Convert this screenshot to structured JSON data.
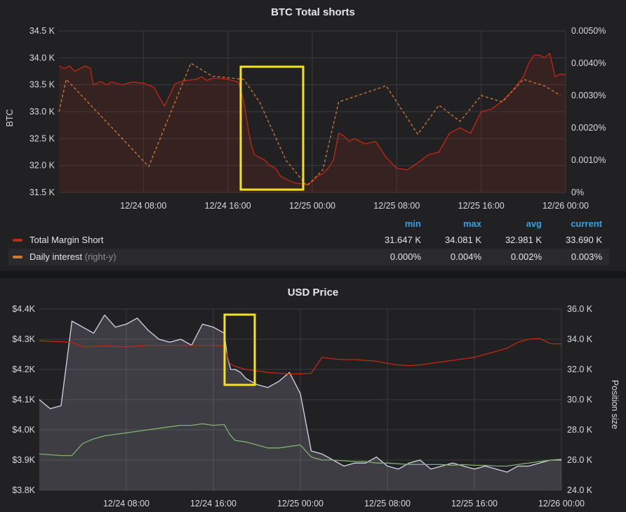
{
  "chart_data": [
    {
      "type": "line",
      "title": "BTC Total shorts",
      "ylabel": "BTC",
      "ylim": [
        31500,
        34500
      ],
      "y2lim": [
        0,
        0.005
      ],
      "x_ticks": [
        "12/24 08:00",
        "12/24 16:00",
        "12/25 00:00",
        "12/25 08:00",
        "12/25 16:00",
        "12/26 00:00"
      ],
      "y_ticks": [
        "31.5 K",
        "32.0 K",
        "32.5 K",
        "33.0 K",
        "33.5 K",
        "34.0 K",
        "34.5 K"
      ],
      "y2_ticks": [
        "0%",
        "0.0010%",
        "0.0020%",
        "0.0030%",
        "0.0040%",
        "0.0050%"
      ],
      "x_range_hours": [
        0,
        48
      ],
      "grid": true,
      "legend_position": "bottom",
      "legend_headers": [
        "min",
        "max",
        "avg",
        "current"
      ],
      "series": [
        {
          "name": "Total Margin Short",
          "axis": "left",
          "color": "#c4270f",
          "fill": true,
          "stats": [
            "31.647 K",
            "34.081 K",
            "32.981 K",
            "33.690 K"
          ],
          "x": [
            0,
            0.5,
            1,
            1.5,
            2,
            2.5,
            3,
            3.2,
            3.3,
            4,
            4.5,
            5,
            6,
            7,
            8,
            9,
            10,
            11,
            12,
            13,
            13.5,
            14,
            14.5,
            15,
            16,
            17,
            17.5,
            18,
            18.2,
            18.5,
            19,
            19.5,
            20,
            20.5,
            21,
            21.5,
            22,
            22.5,
            23,
            23.5,
            24,
            24.5,
            25,
            25.5,
            26,
            26.5,
            27,
            27.2,
            27.5,
            28,
            29,
            30,
            31,
            32,
            33,
            34,
            35,
            36,
            37,
            38,
            39,
            40,
            41,
            42,
            43,
            44,
            44.5,
            45,
            45.5,
            46,
            46.5,
            47,
            47.5,
            48
          ],
          "y": [
            33850,
            33800,
            33850,
            33750,
            33800,
            33850,
            33800,
            33550,
            33500,
            33560,
            33500,
            33550,
            33500,
            33550,
            33530,
            33450,
            33100,
            33520,
            33580,
            33600,
            33650,
            33580,
            33620,
            33620,
            33600,
            33550,
            33200,
            32600,
            32400,
            32200,
            32150,
            32100,
            32000,
            31950,
            31800,
            31750,
            31700,
            31670,
            31660,
            31650,
            31700,
            31800,
            31850,
            31950,
            32100,
            32600,
            32550,
            32500,
            32450,
            32500,
            32400,
            32450,
            32150,
            31950,
            31920,
            32050,
            32200,
            32250,
            32600,
            32700,
            32600,
            33000,
            33050,
            33200,
            33400,
            33650,
            33900,
            34050,
            34050,
            34000,
            34081,
            33650,
            33700,
            33690
          ]
        },
        {
          "name": "Daily interest",
          "note": "(right-y)",
          "axis": "right",
          "color": "#d27a2f",
          "dash": true,
          "stats": [
            "0.000%",
            "0.004%",
            "0.002%",
            "0.003%"
          ],
          "x": [
            0,
            0.7,
            8.5,
            12.5,
            14.5,
            17.5,
            19,
            21.5,
            23.5,
            25,
            26.5,
            31,
            34,
            36,
            38,
            40,
            42,
            44,
            46,
            47.5
          ],
          "y": [
            0.0025,
            0.0035,
            0.0008,
            0.004,
            0.0036,
            0.0035,
            0.0028,
            0.001,
            0.0002,
            0.0007,
            0.0028,
            0.0033,
            0.0018,
            0.0027,
            0.0022,
            0.003,
            0.0028,
            0.0035,
            0.0033,
            0.003
          ]
        }
      ]
    },
    {
      "type": "area",
      "title": "USD Price",
      "ylabel": "",
      "y2label": "Position size",
      "ylim": [
        3800,
        4400
      ],
      "y2lim": [
        24000,
        36000
      ],
      "x_ticks": [
        "12/24 08:00",
        "12/24 16:00",
        "12/25 00:00",
        "12/25 08:00",
        "12/25 16:00",
        "12/26 00:00"
      ],
      "y_ticks": [
        "$3.8K",
        "$3.9K",
        "$4.0K",
        "$4.1K",
        "$4.2K",
        "$4.3K",
        "$4.4K"
      ],
      "y2_ticks": [
        "24.0 K",
        "26.0 K",
        "28.0 K",
        "30.0 K",
        "32.0 K",
        "34.0 K",
        "36.0 K"
      ],
      "x_range_hours": [
        0,
        48
      ],
      "grid": true,
      "series": [
        {
          "name": "USD price",
          "axis": "left",
          "color": "#d9d3ea",
          "fill": true,
          "x": [
            0,
            1,
            2,
            3,
            3.5,
            4,
            5,
            6,
            7,
            8,
            9,
            10,
            11,
            12,
            13,
            14,
            15,
            16,
            17,
            17.3,
            17.6,
            18,
            18.5,
            19,
            20,
            21,
            22,
            23,
            24,
            25,
            26,
            27,
            28,
            29,
            30,
            31,
            32,
            33,
            34,
            35,
            36,
            37,
            38,
            39,
            40,
            41,
            42,
            43,
            44,
            45,
            46,
            47,
            48
          ],
          "y": [
            4100,
            4070,
            4080,
            4360,
            4350,
            4340,
            4320,
            4380,
            4340,
            4350,
            4370,
            4330,
            4300,
            4290,
            4300,
            4280,
            4350,
            4340,
            4320,
            4240,
            4200,
            4200,
            4190,
            4170,
            4150,
            4140,
            4160,
            4190,
            4120,
            3930,
            3920,
            3900,
            3880,
            3890,
            3890,
            3910,
            3880,
            3870,
            3890,
            3900,
            3870,
            3880,
            3890,
            3880,
            3870,
            3880,
            3870,
            3860,
            3880,
            3880,
            3890,
            3900,
            3900
          ]
        },
        {
          "name": "Total Margin Short",
          "axis": "right",
          "color": "#c4270f",
          "x": [
            0,
            3,
            4,
            6,
            8,
            10,
            12,
            13,
            14,
            15,
            16,
            17,
            17.5,
            18,
            19,
            20,
            21,
            22,
            23,
            24,
            25,
            26,
            27,
            28,
            29,
            30,
            31,
            32,
            33,
            34,
            35,
            36,
            37,
            38,
            39,
            40,
            41,
            42,
            43,
            44,
            45,
            46,
            47,
            48
          ],
          "y": [
            33900,
            33800,
            33500,
            33550,
            33500,
            33600,
            33600,
            33600,
            33580,
            33600,
            33600,
            33550,
            32400,
            32200,
            32000,
            31900,
            31800,
            31750,
            31700,
            31700,
            31750,
            32800,
            32700,
            32650,
            32650,
            32600,
            32550,
            32400,
            32300,
            32250,
            32300,
            32400,
            32500,
            32600,
            32700,
            32800,
            33000,
            33200,
            33400,
            33800,
            34000,
            34050,
            33700,
            33690
          ]
        },
        {
          "name": "Position size",
          "axis": "right",
          "color": "#7eb26d",
          "x": [
            0,
            1,
            2,
            3,
            4,
            5,
            6,
            7,
            8,
            9,
            10,
            11,
            12,
            13,
            14,
            15,
            16,
            17,
            17.5,
            18,
            19,
            20,
            21,
            22,
            23,
            24,
            25,
            26,
            27,
            28,
            29,
            30,
            31,
            32,
            33,
            34,
            35,
            36,
            37,
            38,
            39,
            40,
            41,
            42,
            43,
            44,
            45,
            46,
            47,
            48
          ],
          "y": [
            26400,
            26350,
            26300,
            26300,
            27100,
            27400,
            27600,
            27700,
            27800,
            27900,
            28000,
            28100,
            28200,
            28300,
            28300,
            28400,
            28300,
            28350,
            27700,
            27300,
            27200,
            27000,
            26800,
            26800,
            26900,
            27000,
            26200,
            26000,
            26000,
            25950,
            25900,
            25900,
            25800,
            25800,
            25750,
            25700,
            25700,
            25700,
            25700,
            25650,
            25700,
            25650,
            25650,
            25600,
            25600,
            25700,
            25800,
            25900,
            26000,
            26050
          ]
        }
      ]
    }
  ]
}
